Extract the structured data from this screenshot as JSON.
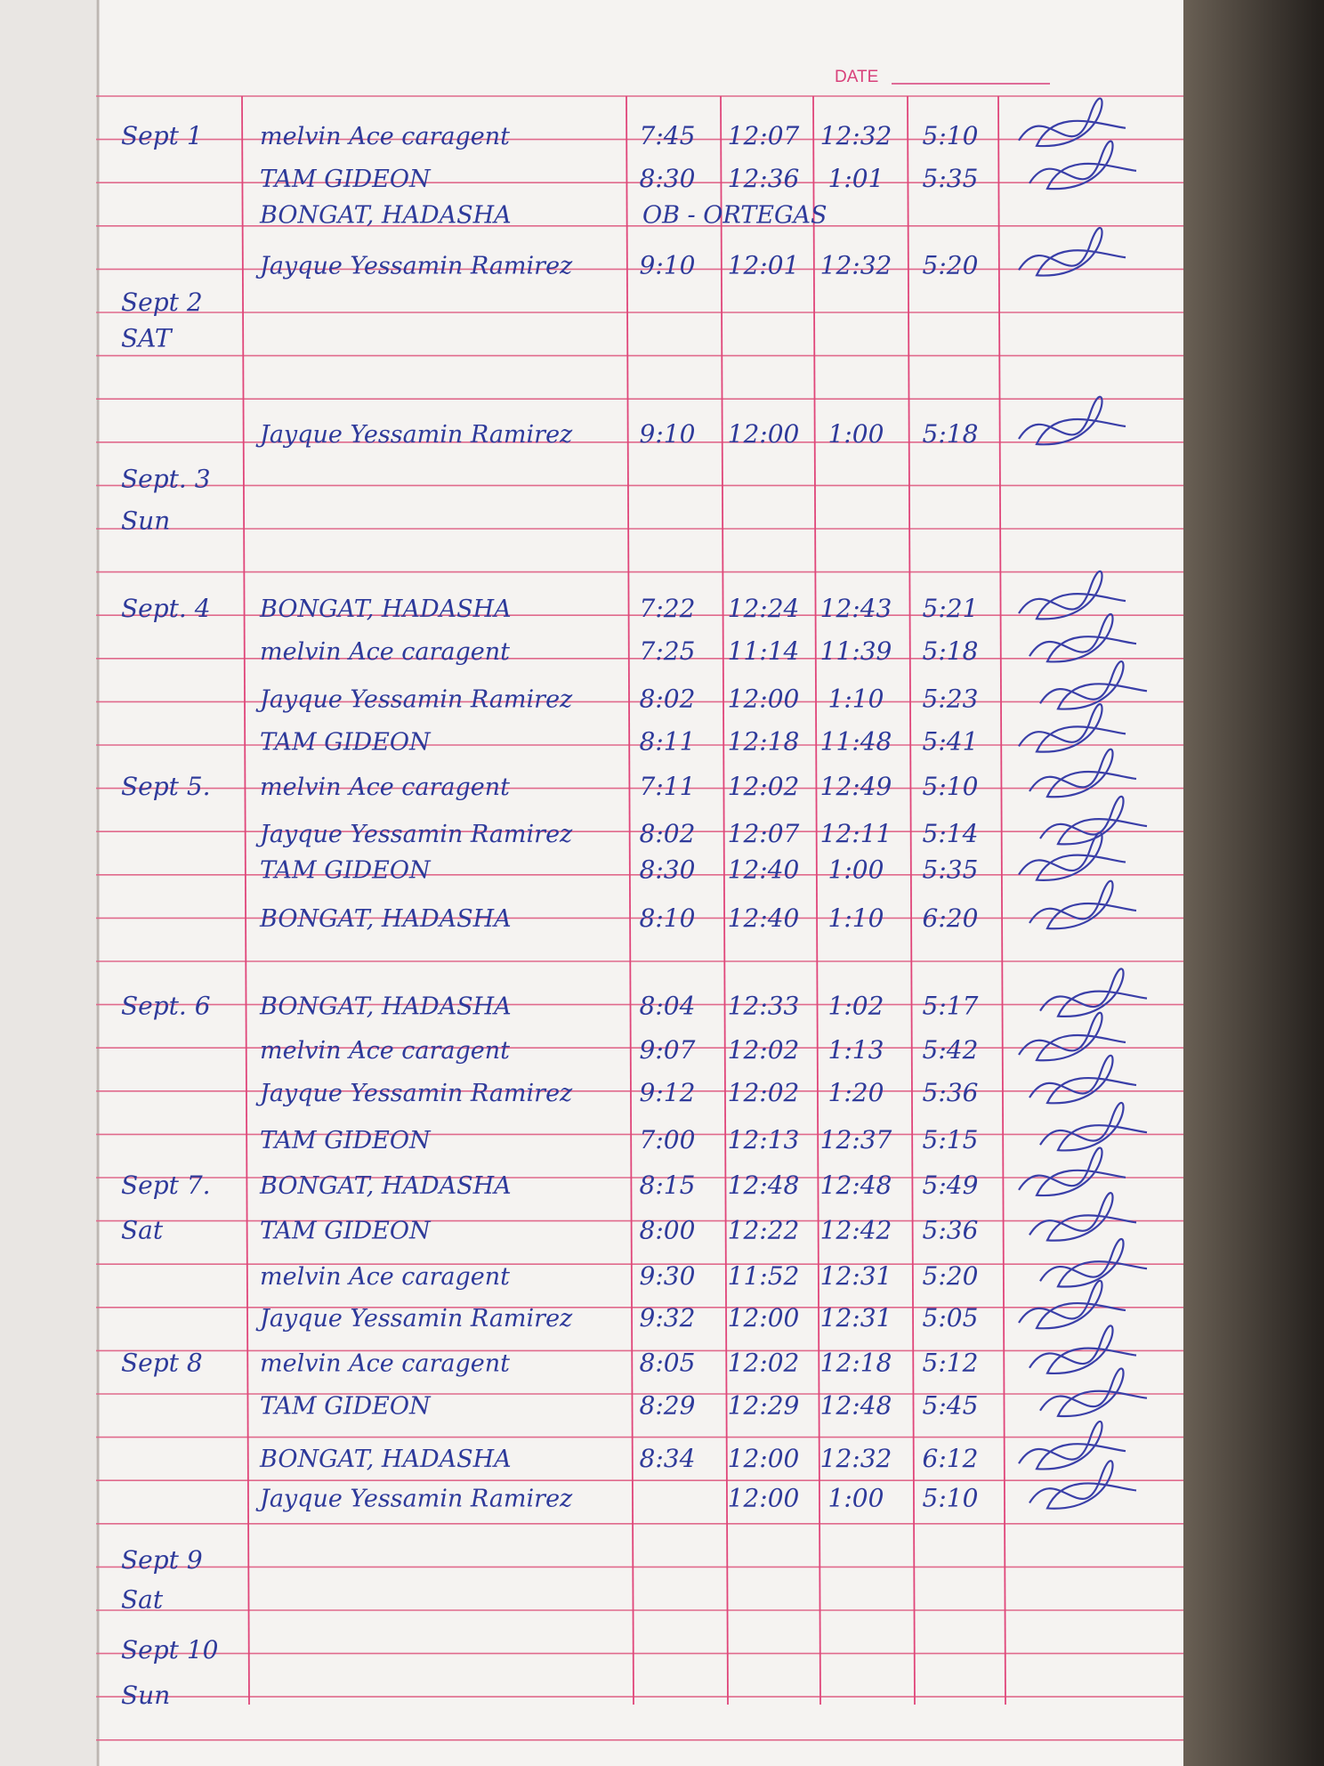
{
  "header": {
    "date_label": "DATE"
  },
  "rows": [
    {
      "date": "Sept 1",
      "name": "melvin Ace caragent",
      "times": [
        "7:45",
        "12:07",
        "12:32",
        "5:10"
      ]
    },
    {
      "name": "TAM GIDEON",
      "times": [
        "8:30",
        "12:36",
        "1:01",
        "5:35"
      ]
    },
    {
      "name": "BONGAT, HADASHA",
      "note": "OB - ORTEGAS"
    },
    {
      "name": "Jayque Yessamin Ramirez",
      "times": [
        "9:10",
        "12:01",
        "12:32",
        "5:20"
      ]
    },
    {
      "date": "Sept 2"
    },
    {
      "date": "SAT"
    },
    {
      "name": "Jayque Yessamin Ramirez",
      "times": [
        "9:10",
        "12:00",
        "1:00",
        "5:18"
      ]
    },
    {
      "date": "Sept. 3"
    },
    {
      "date": "Sun"
    },
    {
      "date": "Sept. 4",
      "name": "BONGAT, HADASHA",
      "times": [
        "7:22",
        "12:24",
        "12:43",
        "5:21"
      ]
    },
    {
      "name": "melvin Ace caragent",
      "times": [
        "7:25",
        "11:14",
        "11:39",
        "5:18"
      ]
    },
    {
      "name": "Jayque Yessamin Ramirez",
      "times": [
        "8:02",
        "12:00",
        "1:10",
        "5:23"
      ]
    },
    {
      "name": "TAM GIDEON",
      "times": [
        "8:11",
        "12:18",
        "11:48",
        "5:41"
      ]
    },
    {
      "date": "Sept 5.",
      "name": "melvin Ace caragent",
      "times": [
        "7:11",
        "12:02",
        "12:49",
        "5:10"
      ]
    },
    {
      "name": "Jayque Yessamin Ramirez",
      "times": [
        "8:02",
        "12:07",
        "12:11",
        "5:14"
      ]
    },
    {
      "name": "TAM GIDEON",
      "times": [
        "8:30",
        "12:40",
        "1:00",
        "5:35"
      ]
    },
    {
      "name": "BONGAT, HADASHA",
      "times": [
        "8:10",
        "12:40",
        "1:10",
        "6:20"
      ]
    },
    {
      "date": "Sept. 6",
      "name": "BONGAT, HADASHA",
      "times": [
        "8:04",
        "12:33",
        "1:02",
        "5:17"
      ]
    },
    {
      "name": "melvin Ace caragent",
      "times": [
        "9:07",
        "12:02",
        "1:13",
        "5:42"
      ]
    },
    {
      "name": "Jayque Yessamin Ramirez",
      "times": [
        "9:12",
        "12:02",
        "1:20",
        "5:36"
      ]
    },
    {
      "name": "TAM GIDEON",
      "times": [
        "7:00",
        "12:13",
        "12:37",
        "5:15"
      ]
    },
    {
      "date": "Sept 7.",
      "name": "BONGAT, HADASHA",
      "times": [
        "8:15",
        "12:48",
        "12:48",
        "5:49"
      ]
    },
    {
      "date": "Sat",
      "name": "TAM GIDEON",
      "times": [
        "8:00",
        "12:22",
        "12:42",
        "5:36"
      ]
    },
    {
      "name": "melvin Ace caragent",
      "times": [
        "9:30",
        "11:52",
        "12:31",
        "5:20"
      ]
    },
    {
      "name": "Jayque Yessamin Ramirez",
      "times": [
        "9:32",
        "12:00",
        "12:31",
        "5:05"
      ]
    },
    {
      "date": "Sept 8",
      "name": "melvin Ace caragent",
      "times": [
        "8:05",
        "12:02",
        "12:18",
        "5:12"
      ]
    },
    {
      "name": "TAM GIDEON",
      "times": [
        "8:29",
        "12:29",
        "12:48",
        "5:45"
      ]
    },
    {
      "name": "BONGAT, HADASHA",
      "times": [
        "8:34",
        "12:00",
        "12:32",
        "6:12"
      ]
    },
    {
      "name": "Jayque Yessamin Ramirez",
      "times": [
        null,
        "12:00",
        "1:00",
        "5:10"
      ]
    },
    {
      "date": "Sept 9"
    },
    {
      "date": "Sat"
    },
    {
      "date": "Sept 10"
    },
    {
      "date": "Sun"
    }
  ]
}
